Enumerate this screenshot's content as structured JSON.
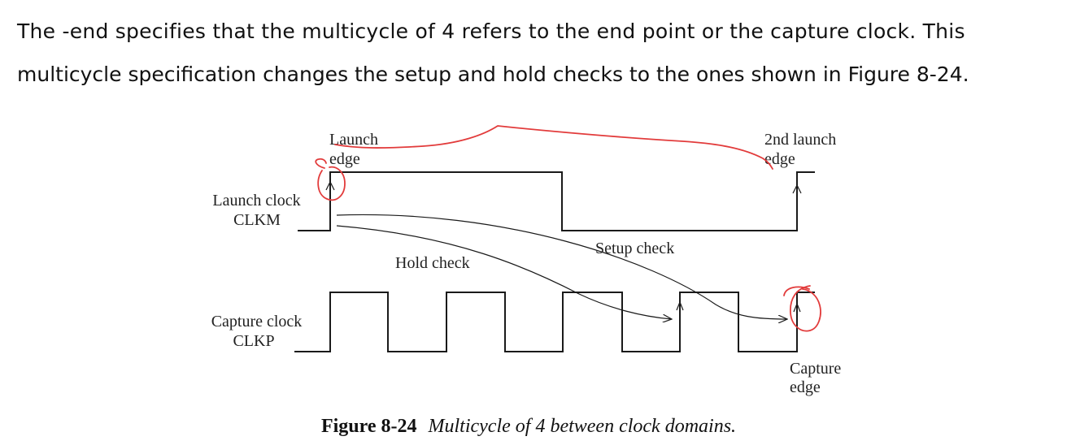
{
  "paragraph": {
    "line1": "The -end specifies that the multicycle of 4 refers to the end point or the capture clock. This",
    "line2": "multicycle specification changes the setup and hold checks to the ones shown in Figure 8-24."
  },
  "diagram": {
    "launch_edge_label": [
      "Launch",
      "edge"
    ],
    "second_launch_label": [
      "2nd launch",
      "edge"
    ],
    "launch_clock_label": [
      "Launch clock",
      "CLKM"
    ],
    "capture_clock_label": [
      "Capture clock",
      "CLKP"
    ],
    "setup_check_label": "Setup check",
    "hold_check_label": "Hold check",
    "capture_edge_label": [
      "Capture",
      "edge"
    ],
    "colors": {
      "waveform": "#1a1a1a",
      "annotation": "#e23b3b"
    }
  },
  "caption": {
    "number": "Figure 8-24",
    "text": "Multicycle of 4 between clock domains."
  }
}
